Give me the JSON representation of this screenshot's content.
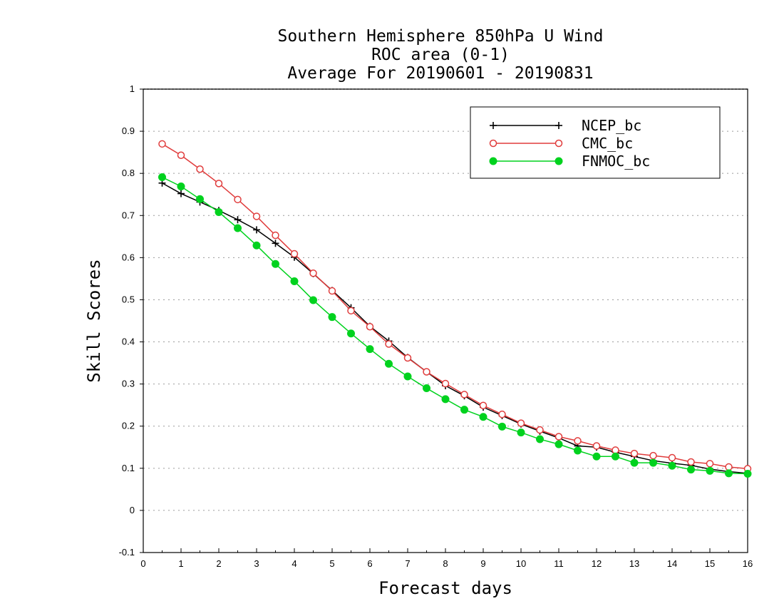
{
  "chart_data": {
    "type": "line",
    "title_lines": [
      "Southern Hemisphere 850hPa U Wind",
      "ROC area (0-1)",
      "Average For 20190601 - 20190831"
    ],
    "xlabel": "Forecast days",
    "ylabel": "Skill Scores",
    "xlim": [
      0,
      16
    ],
    "ylim": [
      -0.1,
      1
    ],
    "x_ticks": [
      0,
      1,
      2,
      3,
      4,
      5,
      6,
      7,
      8,
      9,
      10,
      11,
      12,
      13,
      14,
      15,
      16
    ],
    "y_ticks": [
      -0.1,
      0,
      0.1,
      0.2,
      0.3,
      0.4,
      0.5,
      0.6,
      0.7,
      0.8,
      0.9,
      1
    ],
    "y_tick_labels": [
      "-0.1",
      "0",
      "0.1",
      "0.2",
      "0.3",
      "0.4",
      "0.5",
      "0.6",
      "0.7",
      "0.8",
      "0.9",
      "1"
    ],
    "grid": "horizontal dotted",
    "legend_position": "top-right",
    "x": [
      0.5,
      1,
      1.5,
      2,
      2.5,
      3,
      3.5,
      4,
      4.5,
      5,
      5.5,
      6,
      6.5,
      7,
      7.5,
      8,
      8.5,
      9,
      9.5,
      10,
      10.5,
      11,
      11.5,
      12,
      12.5,
      13,
      13.5,
      14,
      14.5,
      15,
      15.5,
      16
    ],
    "series": [
      {
        "name": "NCEP_bc",
        "color": "#000000",
        "marker": "plus",
        "values": [
          0.777,
          0.752,
          0.732,
          0.712,
          0.69,
          0.666,
          0.634,
          0.601,
          0.562,
          0.522,
          0.481,
          0.437,
          0.402,
          0.363,
          0.329,
          0.296,
          0.272,
          0.245,
          0.225,
          0.205,
          0.188,
          0.172,
          0.153,
          0.15,
          0.138,
          0.128,
          0.118,
          0.112,
          0.107,
          0.098,
          0.092,
          0.088
        ]
      },
      {
        "name": "CMC_bc",
        "color": "#e03c3c",
        "marker": "open-circle",
        "values": [
          0.87,
          0.843,
          0.81,
          0.776,
          0.738,
          0.698,
          0.653,
          0.609,
          0.563,
          0.521,
          0.474,
          0.436,
          0.395,
          0.362,
          0.329,
          0.301,
          0.275,
          0.249,
          0.228,
          0.207,
          0.191,
          0.175,
          0.165,
          0.153,
          0.143,
          0.135,
          0.13,
          0.125,
          0.115,
          0.111,
          0.103,
          0.099
        ]
      },
      {
        "name": "FNMOC_bc",
        "color": "#00d21e",
        "marker": "filled-circle",
        "values": [
          0.791,
          0.769,
          0.739,
          0.708,
          0.67,
          0.629,
          0.585,
          0.544,
          0.499,
          0.459,
          0.42,
          0.383,
          0.348,
          0.318,
          0.29,
          0.264,
          0.239,
          0.222,
          0.199,
          0.185,
          0.169,
          0.157,
          0.142,
          0.128,
          0.128,
          0.113,
          0.113,
          0.106,
          0.097,
          0.094,
          0.088,
          0.087
        ]
      }
    ]
  }
}
